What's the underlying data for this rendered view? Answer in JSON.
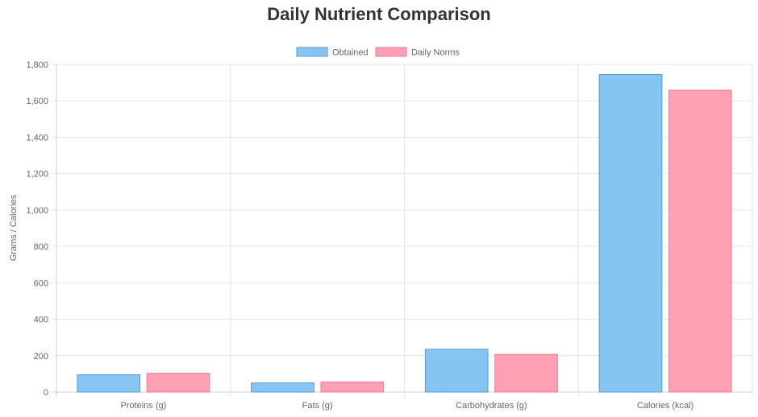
{
  "chart_data": {
    "type": "bar",
    "title": "Daily Nutrient Comparison",
    "xlabel": "",
    "ylabel": "Grams / Calories",
    "categories": [
      "Proteins (g)",
      "Fats (g)",
      "Carbohydrates (g)",
      "Calories (kcal)"
    ],
    "series": [
      {
        "name": "Obtained",
        "values": [
          95,
          50,
          235,
          1745
        ],
        "color": "#86c5f2",
        "border": "#4a9fd8"
      },
      {
        "name": "Daily Norms",
        "values": [
          103,
          55,
          207,
          1658
        ],
        "color": "#ffa0b4",
        "border": "#f27a94"
      }
    ],
    "ylim": [
      0,
      1800
    ],
    "yticks": [
      "0",
      "200",
      "400",
      "600",
      "800",
      "1,000",
      "1,200",
      "1,400",
      "1,600",
      "1,800"
    ],
    "ytick_values": [
      0,
      200,
      400,
      600,
      800,
      1000,
      1200,
      1400,
      1600,
      1800
    ],
    "grid": true,
    "legend_position": "top"
  }
}
